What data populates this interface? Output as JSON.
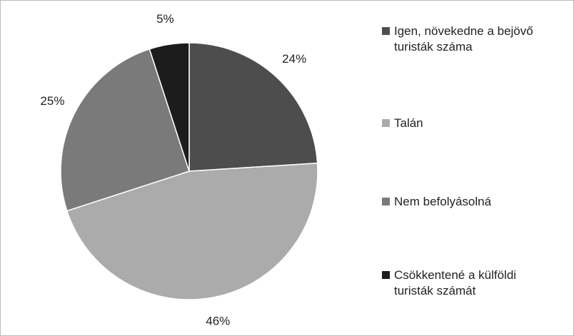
{
  "chart_data": {
    "type": "pie",
    "categories": [
      "Igen, növekedne a bejövő turisták száma",
      "Talán",
      "Nem befolyásolná",
      "Csökkentené a külföldi turisták számát"
    ],
    "values": [
      24,
      46,
      25,
      5
    ],
    "value_labels": [
      "24%",
      "46%",
      "25%",
      "5%"
    ],
    "colors": [
      "#4d4d4d",
      "#ababab",
      "#7a7a7a",
      "#1c1c1c"
    ],
    "legend": "right"
  }
}
